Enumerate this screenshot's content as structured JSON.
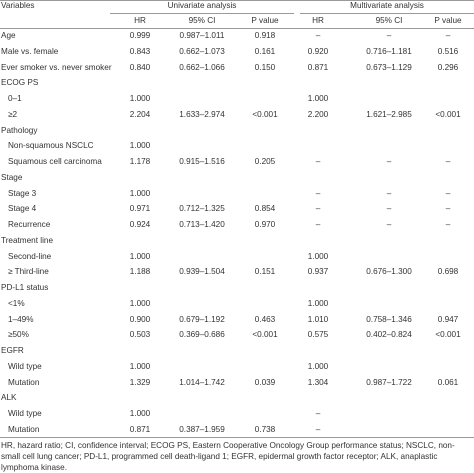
{
  "table": {
    "header": [
      "Variables",
      "Univariate analysis",
      "Multivariate analysis"
    ],
    "subheader": [
      "HR",
      "95% CI",
      "P value",
      "HR",
      "95% CI",
      "P value"
    ],
    "rows": [
      {
        "label": "Age",
        "values": [
          "0.999",
          "0.987–1.011",
          "0.918",
          "–",
          "–",
          "–"
        ]
      },
      {
        "label": "Male vs. female",
        "values": [
          "0.843",
          "0.662–1.073",
          "0.161",
          "0.920",
          "0.716–1.181",
          "0.516"
        ]
      },
      {
        "label": "Ever smoker vs. never smoker",
        "values": [
          "0.840",
          "0.662–1.066",
          "0.150",
          "0.871",
          "0.673–1.129",
          "0.296"
        ]
      },
      {
        "section": "ECOG PS",
        "rows": [
          {
            "label": "0–1",
            "values": [
              "1.000",
              null,
              null,
              "1.000",
              null,
              null
            ]
          },
          {
            "label": "≥2",
            "values": [
              "2.204",
              "1.633–2.974",
              "<0.001",
              "2.200",
              "1.621–2.985",
              "<0.001"
            ]
          }
        ]
      },
      {
        "section": "Pathology",
        "rows": [
          {
            "label": "Non-squamous NSCLC",
            "values": [
              "1.000",
              null,
              null,
              null,
              null,
              null
            ]
          },
          {
            "label": "Squamous cell carcinoma",
            "values": [
              "1.178",
              "0.915–1.516",
              "0.205",
              "–",
              "–",
              "–"
            ]
          }
        ]
      },
      {
        "section": "Stage",
        "rows": [
          {
            "label": "Stage 3",
            "values": [
              "1.000",
              null,
              null,
              "–",
              "–",
              "–"
            ]
          },
          {
            "label": "Stage 4",
            "values": [
              "0.971",
              "0.712–1.325",
              "0.854",
              "–",
              "–",
              "–"
            ]
          },
          {
            "label": "Recurrence",
            "values": [
              "0.924",
              "0.713–1.420",
              "0.970",
              "–",
              "–",
              "–"
            ]
          }
        ]
      },
      {
        "section": "Treatment line",
        "rows": [
          {
            "label": "Second-line",
            "values": [
              "1.000",
              null,
              null,
              "1.000",
              null,
              null
            ]
          },
          {
            "label": "≥ Third-line",
            "values": [
              "1.188",
              "0.939–1.504",
              "0.151",
              "0.937",
              "0.676–1.300",
              "0.698"
            ]
          }
        ]
      },
      {
        "section": "PD-L1 status",
        "rows": [
          {
            "label": "<1%",
            "values": [
              "1.000",
              null,
              null,
              "1.000",
              null,
              null
            ]
          },
          {
            "label": "1–49%",
            "values": [
              "0.900",
              "0.679–1.192",
              "0.463",
              "1.010",
              "0.758–1.346",
              "0.947"
            ]
          },
          {
            "label": "≥50%",
            "values": [
              "0.503",
              "0.369–0.686",
              "<0.001",
              "0.575",
              "0.402–0.824",
              "<0.001"
            ]
          }
        ]
      },
      {
        "section": "EGFR",
        "rows": [
          {
            "label": "Wild type",
            "values": [
              "1.000",
              null,
              null,
              "1.000",
              null,
              null
            ]
          },
          {
            "label": "Mutation",
            "values": [
              "1.329",
              "1.014–1.742",
              "0.039",
              "1.304",
              "0.987–1.722",
              "0.061"
            ]
          }
        ]
      },
      {
        "section": "ALK",
        "rows": [
          {
            "label": "Wild type",
            "values": [
              "1.000",
              null,
              null,
              "–",
              null,
              null
            ]
          },
          {
            "label": "Mutation",
            "values": [
              "0.871",
              "0.387–1.959",
              "0.738",
              "–",
              null,
              null
            ]
          }
        ]
      }
    ]
  },
  "footnote": "HR, hazard ratio; CI, confidence interval; ECOG PS, Eastern Cooperative Oncology Group performance status; NSCLC, non-small cell lung cancer; PD-L1, programmed cell death-ligand 1; EGFR, epidermal growth factor receptor; ALK, anaplastic lymphoma kinase."
}
